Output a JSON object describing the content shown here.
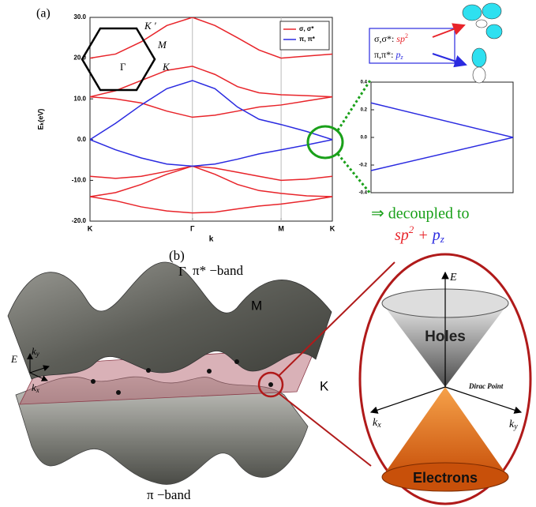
{
  "chart_data": [
    {
      "type": "line",
      "panel_label": "(a)",
      "xlabel": "k",
      "ylabel": "Eₖ(eV)",
      "x": [
        0,
        0.25,
        0.5,
        0.75,
        1,
        1.22,
        1.44,
        1.65,
        1.866,
        2.116,
        2.366
      ],
      "xlim": [
        0,
        2.366
      ],
      "xticks": [
        {
          "value": 0,
          "label": "K"
        },
        {
          "value": 1,
          "label": "Γ"
        },
        {
          "value": 1.866,
          "label": "M"
        },
        {
          "value": 2.366,
          "label": "K"
        }
      ],
      "ylim": [
        -20,
        30
      ],
      "yticks": [
        {
          "value": 30,
          "label": "30.0"
        },
        {
          "value": 20,
          "label": "20.0"
        },
        {
          "value": 10,
          "label": "10.0"
        },
        {
          "value": 0,
          "label": "0.0"
        },
        {
          "value": -10,
          "label": "-10.0"
        },
        {
          "value": -20,
          "label": "-20.0"
        }
      ],
      "vgrid": true,
      "legend": "upper right",
      "brillouin_zone": {
        "K_prime": "K ′",
        "M": "M",
        "Gamma": "Γ",
        "K": "K"
      },
      "series": [
        {
          "name": "σ, σ*",
          "color": "#e8242a",
          "bands": [
            [
              -14,
              -15,
              -16.5,
              -17.5,
              -18,
              -17.8,
              -17,
              -16.3,
              -15.8,
              -15,
              -14
            ],
            [
              -14,
              -13,
              -11,
              -8.5,
              -6.5,
              -8.5,
              -11,
              -12.5,
              -13.2,
              -13.8,
              -14
            ],
            [
              -9,
              -9.5,
              -9,
              -7.8,
              -6.5,
              -7,
              -8,
              -9,
              -10,
              -9.7,
              -9
            ],
            [
              10.5,
              10,
              9,
              7,
              5.5,
              6,
              7,
              8,
              8.5,
              9.5,
              10.5
            ],
            [
              10.5,
              12,
              14.5,
              17,
              18,
              16,
              13,
              11.5,
              11,
              10.8,
              10.5
            ],
            [
              20,
              21,
              24,
              28,
              30,
              28,
              25,
              22,
              20,
              20.5,
              21
            ]
          ]
        },
        {
          "name": "π, π*",
          "color": "#2a2ae0",
          "bands": [
            [
              0,
              4,
              8.5,
              12.5,
              14.5,
              12.5,
              8,
              5,
              3.7,
              2,
              0
            ],
            [
              0,
              -2.5,
              -4.5,
              -6,
              -6.5,
              -6,
              -4.8,
              -3.5,
              -2.5,
              -1.3,
              0
            ]
          ]
        }
      ]
    },
    {
      "type": "line",
      "x": [
        0,
        1
      ],
      "xlim": [
        0,
        1
      ],
      "ylim": [
        -0.4,
        0.4
      ],
      "yticks": [
        0.4,
        0.2,
        {
          "value": 0,
          "label": "0.0"
        },
        -0.2,
        -0.4
      ],
      "series": [
        {
          "color": "#2a2ae0",
          "values": [
            0.25,
            0
          ]
        },
        {
          "color": "#2a2ae0",
          "values": [
            -0.24,
            0
          ]
        }
      ]
    }
  ],
  "orbitals": {
    "sigma": [
      "σ,σ*: ",
      "sp",
      "2"
    ],
    "pi": [
      "π,π*: ",
      "p",
      "z"
    ]
  },
  "decoupled": {
    "line1": "⇒ decoupled to",
    "line2": [
      "sp",
      "2",
      " + ",
      "p",
      "z"
    ]
  },
  "panel_b": {
    "label": "(b)",
    "Gamma": "Γ",
    "pi_star_band": "π* −band",
    "pi_band": "π −band",
    "M": "M",
    "K": "K",
    "axis_E": "E",
    "axis_ky": [
      "k",
      "y"
    ],
    "axis_kx": [
      "k",
      "x"
    ],
    "cone": {
      "E": "E",
      "holes": "Holes",
      "electrons": "Electrons",
      "dirac_point": "Dirac Point",
      "kx": [
        "k",
        "x"
      ],
      "ky": [
        "k",
        "y"
      ]
    }
  }
}
